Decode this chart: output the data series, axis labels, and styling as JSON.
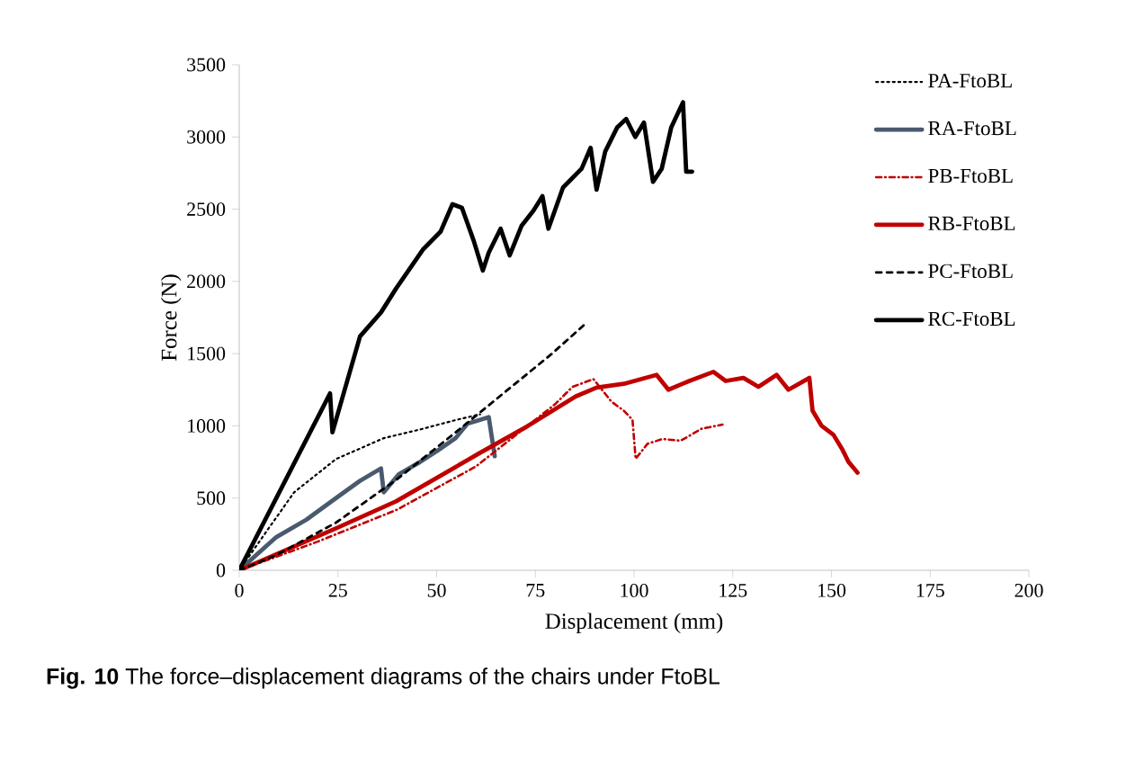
{
  "chart_data": {
    "type": "line",
    "xlabel": "Displacement (mm)",
    "ylabel": "Force (N)",
    "xlim": [
      0,
      200
    ],
    "ylim": [
      0,
      3500
    ],
    "xticks": [
      0,
      25,
      50,
      75,
      100,
      125,
      150,
      175,
      200
    ],
    "yticks": [
      0,
      500,
      1000,
      1500,
      2000,
      2500,
      3000,
      3500
    ],
    "grid": false,
    "legend": "top right",
    "marker": "none",
    "annotations": [
      "**Fig. 10** The force–displacement diagrams of the chairs under FtoBL"
    ],
    "series": [
      {
        "name": "PA-FtoBL",
        "color": "#000000",
        "line_style": "dotted",
        "x": [
          0,
          6.4,
          13.9,
          24.5,
          36.6,
          45.8,
          54.8,
          61
        ],
        "values": [
          0,
          250,
          540,
          770,
          915,
          975,
          1040,
          1080
        ]
      },
      {
        "name": "RA-FtoBL",
        "color": "#4a5a6e",
        "line_style": "solid",
        "x": [
          0,
          9.4,
          17,
          24.5,
          30.6,
          35.9,
          36.6,
          40.4,
          45.8,
          50.3,
          54.8,
          57.8,
          60.8,
          63.2,
          64.7
        ],
        "values": [
          0,
          230,
          350,
          500,
          620,
          705,
          540,
          665,
          750,
          830,
          915,
          1015,
          1040,
          1060,
          790
        ]
      },
      {
        "name": "PB-FtoBL",
        "color": "#c00000",
        "line_style": "dashdotted",
        "x": [
          0,
          20,
          40,
          60,
          80,
          84.4,
          89.7,
          94.3,
          97.4,
          99.6,
          100.4,
          103.4,
          107.2,
          111.8,
          117.1,
          122.4
        ],
        "values": [
          0,
          200,
          420,
          720,
          1150,
          1270,
          1324,
          1167,
          1105,
          1042,
          772,
          876,
          909,
          897,
          980,
          1009
        ]
      },
      {
        "name": "RB-FtoBL",
        "color": "#c00000",
        "line_style": "solid",
        "x": [
          0,
          24.5,
          39.7,
          60.8,
          72.9,
          85.2,
          90.5,
          97.4,
          105.7,
          108.7,
          114,
          120.1,
          123.2,
          127.7,
          131.5,
          136.1,
          139.1,
          144.4,
          145.2,
          147.5,
          150.5,
          152.8,
          154.3,
          156.6
        ],
        "values": [
          0,
          290,
          477,
          810,
          996,
          1204,
          1265,
          1291,
          1353,
          1250,
          1311,
          1374,
          1311,
          1332,
          1270,
          1353,
          1250,
          1332,
          1105,
          1000,
          938,
          834,
          751,
          676
        ]
      },
      {
        "name": "PC-FtoBL",
        "color": "#000000",
        "line_style": "dashed",
        "x": [
          0,
          9.4,
          24.5,
          39.7,
          54.8,
          66.9,
          79,
          87.4
        ],
        "values": [
          0,
          105,
          330,
          625,
          955,
          1225,
          1495,
          1700
        ]
      },
      {
        "name": "RC-FtoBL",
        "color": "#000000",
        "line_style": "solid",
        "x": [
          0,
          23,
          23.6,
          30.6,
          35.9,
          39.7,
          46.5,
          51,
          54,
          56.4,
          59.4,
          61.7,
          63.2,
          66.2,
          68.5,
          71.5,
          74.5,
          76.8,
          78.3,
          82,
          86.7,
          89,
          90.5,
          92.7,
          95.7,
          98,
          100.3,
          102.5,
          104.8,
          107,
          109.4,
          112.4,
          113.2,
          114.7
        ],
        "values": [
          0,
          1225,
          955,
          1620,
          1785,
          1950,
          2220,
          2345,
          2535,
          2510,
          2280,
          2075,
          2200,
          2365,
          2180,
          2385,
          2490,
          2590,
          2365,
          2650,
          2780,
          2925,
          2635,
          2900,
          3065,
          3125,
          3000,
          3100,
          2690,
          2780,
          3065,
          3240,
          2760,
          2760
        ]
      }
    ]
  }
}
